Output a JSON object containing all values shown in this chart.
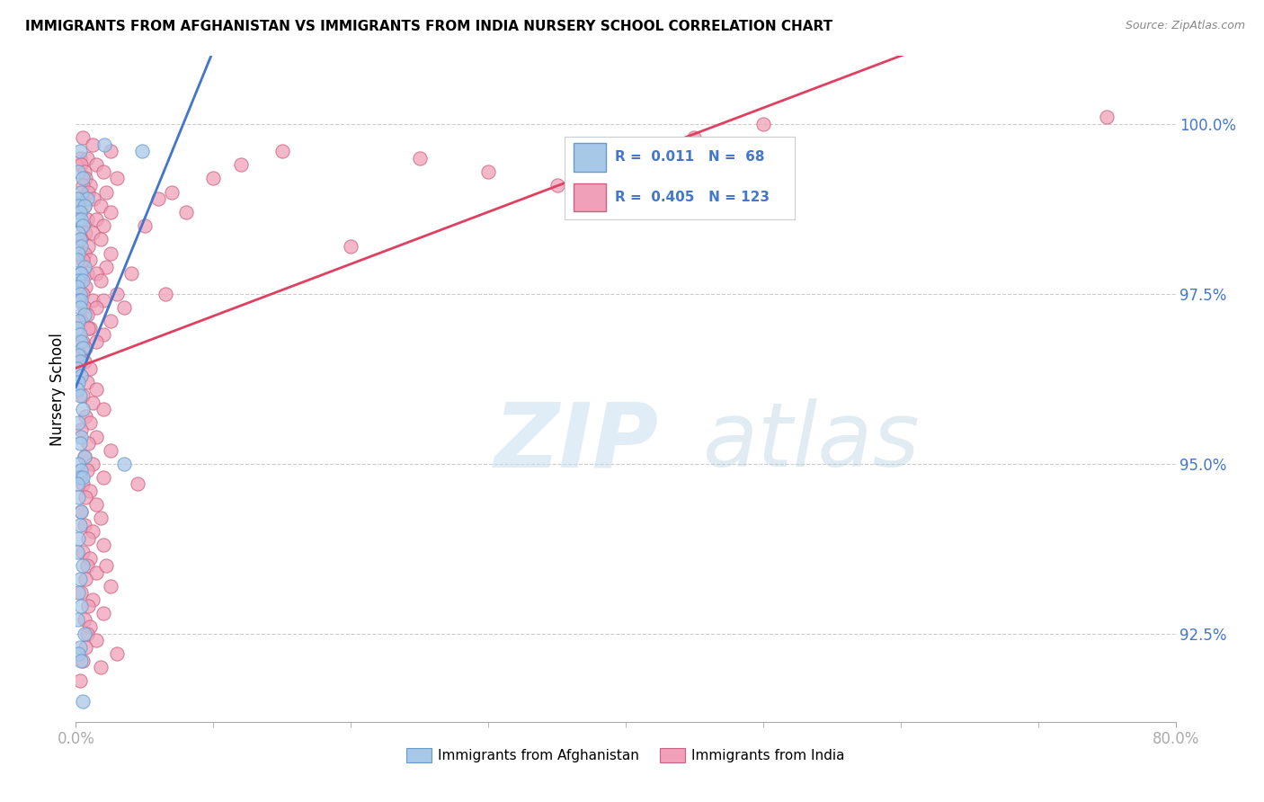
{
  "title": "IMMIGRANTS FROM AFGHANISTAN VS IMMIGRANTS FROM INDIA NURSERY SCHOOL CORRELATION CHART",
  "source": "Source: ZipAtlas.com",
  "ylabel": "Nursery School",
  "yticks": [
    92.5,
    95.0,
    97.5,
    100.0
  ],
  "ytick_labels": [
    "92.5%",
    "95.0%",
    "97.5%",
    "100.0%"
  ],
  "xmin": 0.0,
  "xmax": 80.0,
  "ymin": 91.2,
  "ymax": 101.0,
  "color_afghanistan": "#a8c8e8",
  "color_india": "#f0a0b8",
  "color_trendline_afghanistan": "#4477cc",
  "color_trendline_india": "#e04060",
  "color_blue_text": "#4477cc",
  "afghanistan_scatter_x": [
    0.3,
    2.1,
    4.8,
    0.2,
    0.5,
    0.4,
    0.8,
    0.1,
    0.2,
    0.6,
    0.3,
    0.1,
    0.4,
    0.5,
    0.2,
    0.3,
    0.4,
    0.2,
    0.1,
    0.6,
    0.3,
    0.4,
    0.2,
    0.5,
    0.1,
    0.3,
    0.2,
    0.4,
    0.3,
    0.6,
    0.2,
    0.1,
    0.3,
    0.4,
    0.5,
    0.2,
    0.3,
    0.1,
    0.4,
    0.2,
    0.1,
    0.3,
    0.5,
    0.2,
    0.4,
    0.3,
    0.6,
    0.2,
    0.4,
    0.3,
    0.5,
    0.1,
    3.5,
    0.2,
    0.4,
    0.3,
    0.2,
    0.1,
    0.5,
    0.3,
    0.2,
    0.4,
    0.1,
    0.6,
    0.3,
    0.2,
    0.4,
    0.5
  ],
  "afghanistan_scatter_y": [
    99.6,
    99.7,
    99.6,
    99.3,
    99.2,
    99.0,
    98.9,
    98.9,
    98.8,
    98.8,
    98.7,
    98.6,
    98.6,
    98.5,
    98.4,
    98.3,
    98.2,
    98.1,
    98.0,
    97.9,
    97.8,
    97.8,
    97.7,
    97.7,
    97.6,
    97.5,
    97.4,
    97.4,
    97.3,
    97.2,
    97.1,
    97.0,
    96.9,
    96.8,
    96.7,
    96.6,
    96.5,
    96.4,
    96.3,
    96.2,
    96.1,
    96.0,
    95.8,
    95.6,
    95.4,
    95.3,
    95.1,
    95.0,
    94.9,
    94.8,
    94.8,
    94.7,
    95.0,
    94.5,
    94.3,
    94.1,
    93.9,
    93.7,
    93.5,
    93.3,
    93.1,
    92.9,
    92.7,
    92.5,
    92.3,
    92.2,
    92.1,
    91.5
  ],
  "india_scatter_x": [
    0.5,
    1.2,
    2.5,
    0.3,
    0.8,
    1.5,
    0.4,
    2.0,
    0.6,
    3.0,
    0.7,
    1.0,
    0.5,
    2.2,
    0.9,
    1.3,
    0.4,
    1.8,
    0.6,
    2.5,
    0.3,
    0.8,
    1.5,
    0.5,
    2.0,
    0.7,
    1.2,
    0.4,
    1.8,
    0.9,
    2.5,
    0.6,
    1.0,
    0.5,
    2.2,
    0.8,
    1.5,
    0.4,
    1.8,
    0.7,
    3.0,
    0.5,
    1.2,
    2.0,
    0.6,
    1.5,
    0.8,
    2.5,
    0.4,
    1.0,
    0.9,
    2.0,
    0.5,
    1.5,
    0.7,
    8.0,
    3.5,
    5.0,
    6.0,
    4.0,
    7.0,
    10.0,
    12.0,
    15.0,
    20.0,
    25.0,
    30.0,
    35.0,
    40.0,
    45.0,
    50.0,
    0.3,
    0.6,
    1.0,
    0.4,
    0.8,
    1.5,
    0.5,
    1.2,
    2.0,
    0.7,
    1.0,
    0.4,
    1.5,
    0.9,
    2.5,
    0.6,
    1.2,
    0.8,
    2.0,
    0.5,
    1.0,
    0.7,
    1.5,
    0.4,
    1.8,
    0.6,
    1.2,
    0.9,
    2.0,
    0.5,
    1.0,
    0.8,
    1.5,
    0.7,
    2.5,
    0.4,
    1.2,
    0.9,
    2.0,
    0.6,
    1.0,
    0.8,
    1.5,
    0.7,
    3.0,
    4.5,
    0.5,
    1.8,
    2.2,
    6.5,
    0.3,
    75.0
  ],
  "india_scatter_y": [
    99.8,
    99.7,
    99.6,
    99.5,
    99.5,
    99.4,
    99.4,
    99.3,
    99.3,
    99.2,
    99.2,
    99.1,
    99.1,
    99.0,
    99.0,
    98.9,
    98.9,
    98.8,
    98.8,
    98.7,
    98.7,
    98.6,
    98.6,
    98.5,
    98.5,
    98.4,
    98.4,
    98.3,
    98.3,
    98.2,
    98.1,
    98.1,
    98.0,
    98.0,
    97.9,
    97.8,
    97.8,
    97.7,
    97.7,
    97.6,
    97.5,
    97.5,
    97.4,
    97.4,
    97.3,
    97.3,
    97.2,
    97.1,
    97.1,
    97.0,
    97.0,
    96.9,
    96.8,
    96.8,
    96.7,
    98.7,
    97.3,
    98.5,
    98.9,
    97.8,
    99.0,
    99.2,
    99.4,
    99.6,
    98.2,
    99.5,
    99.3,
    99.1,
    99.7,
    99.8,
    100.0,
    96.6,
    96.5,
    96.4,
    96.3,
    96.2,
    96.1,
    96.0,
    95.9,
    95.8,
    95.7,
    95.6,
    95.5,
    95.4,
    95.3,
    95.2,
    95.1,
    95.0,
    94.9,
    94.8,
    94.7,
    94.6,
    94.5,
    94.4,
    94.3,
    94.2,
    94.1,
    94.0,
    93.9,
    93.8,
    93.7,
    93.6,
    93.5,
    93.4,
    93.3,
    93.2,
    93.1,
    93.0,
    92.9,
    92.8,
    92.7,
    92.6,
    92.5,
    92.4,
    92.3,
    92.2,
    94.7,
    92.1,
    92.0,
    93.5,
    97.5,
    91.8,
    100.1
  ]
}
